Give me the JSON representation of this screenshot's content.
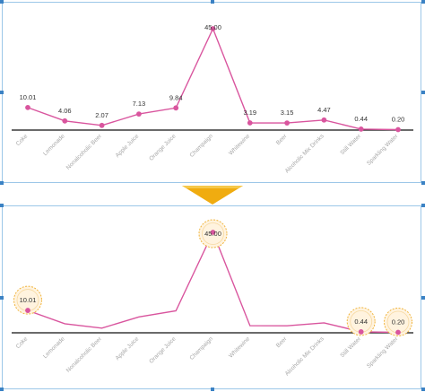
{
  "chart_data": [
    {
      "type": "line",
      "categories": [
        "Coke",
        "Lemonade",
        "Nonalcoholic Beer",
        "Apple Juice",
        "Orange Juice",
        "Champaign",
        "Whitewine",
        "Beer",
        "Alcoholic Mix Drinks",
        "Still Water",
        "Sparkling Water"
      ],
      "values": [
        10.01,
        4.06,
        2.07,
        7.13,
        9.84,
        45.0,
        3.19,
        3.15,
        4.47,
        0.44,
        0.2
      ],
      "data_labels": [
        "10.01",
        "4.06",
        "2.07",
        "7.13",
        "9.84",
        "45.00",
        "3.19",
        "3.15",
        "4.47",
        "0.44",
        "0.20"
      ],
      "ylim": [
        0,
        45
      ],
      "grid": false,
      "line_color": "#d9559e",
      "point_color": "#d9559e"
    },
    {
      "type": "line",
      "categories": [
        "Coke",
        "Lemonade",
        "Nonalcoholic Beer",
        "Apple Juice",
        "Orange Juice",
        "Champaign",
        "Whitewine",
        "Beer",
        "Alcoholic Mix Drinks",
        "Still Water",
        "Sparkling Water"
      ],
      "values": [
        10.01,
        4.06,
        2.07,
        7.13,
        9.84,
        45.0,
        3.19,
        3.15,
        4.47,
        0.44,
        0.2
      ],
      "highlighted": [
        "Coke",
        "Champaign",
        "Still Water",
        "Sparkling Water"
      ],
      "data_labels": [
        "10.01",
        "",
        "",
        "",
        "",
        "45.00",
        "",
        "",
        "",
        "0.44",
        "0.20"
      ],
      "ylim": [
        0,
        45
      ],
      "grid": false,
      "line_color": "#d9559e",
      "highlight_color": "#f0b43c"
    }
  ],
  "colors": {
    "frame": "#9cc7e8",
    "handle": "#3b82c4",
    "arrow": "#f0ac10"
  }
}
